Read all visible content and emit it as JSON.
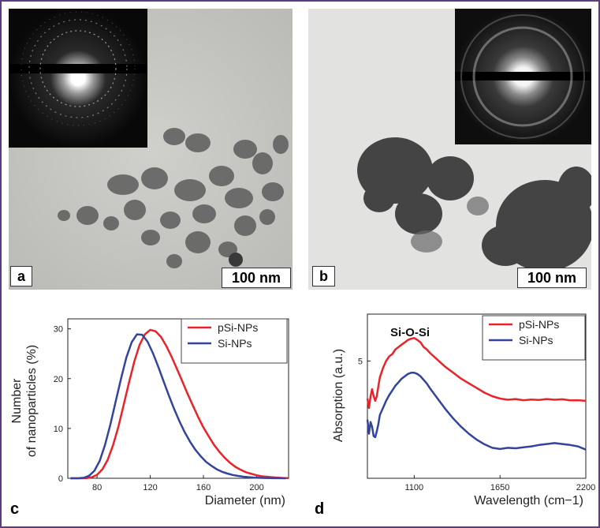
{
  "panels": {
    "a": {
      "label": "a",
      "scale_bar": "100 nm"
    },
    "b": {
      "label": "b",
      "scale_bar": "100 nm"
    },
    "c": {
      "label": "c"
    },
    "d": {
      "label": "d"
    }
  },
  "colors": {
    "frame": "#5b3a86",
    "pSi": "#e8232a",
    "Si": "#33449b"
  },
  "chart_data": [
    {
      "type": "line",
      "panel": "c",
      "xlabel": "Diameter (nm)",
      "ylabel": "Number\nof nanoparticles (%)",
      "xlim": [
        58,
        224
      ],
      "ylim": [
        0,
        32
      ],
      "xticks": [
        80,
        120,
        160,
        200
      ],
      "yticks": [
        0,
        10,
        20,
        30
      ],
      "legend_position": "top-right",
      "series": [
        {
          "name": "pSi-NPs",
          "color": "#e8232a",
          "x": [
            60,
            68,
            72,
            76,
            80,
            84,
            88,
            92,
            96,
            100,
            104,
            108,
            112,
            116,
            120,
            124,
            128,
            132,
            136,
            140,
            144,
            148,
            152,
            156,
            160,
            164,
            168,
            172,
            176,
            180,
            184,
            188,
            192,
            196,
            200,
            204,
            208,
            212,
            216,
            220,
            224
          ],
          "y": [
            0,
            0,
            0.02,
            0.2,
            0.7,
            1.8,
            3.7,
            6.6,
            10.3,
            14.7,
            19.2,
            23.4,
            26.8,
            28.9,
            29.8,
            29.5,
            28.4,
            26.6,
            24.4,
            22.0,
            19.5,
            17.0,
            14.6,
            12.3,
            10.2,
            8.4,
            6.7,
            5.3,
            4.1,
            3.1,
            2.3,
            1.7,
            1.2,
            0.9,
            0.6,
            0.4,
            0.3,
            0.2,
            0.12,
            0.06,
            0.03
          ]
        },
        {
          "name": "Si-NPs",
          "color": "#33449b",
          "x": [
            60,
            66,
            70,
            74,
            78,
            82,
            86,
            90,
            94,
            98,
            102,
            106,
            110,
            114,
            118,
            122,
            126,
            130,
            134,
            138,
            142,
            146,
            150,
            154,
            158,
            162,
            166,
            170,
            174,
            178,
            182,
            186,
            190,
            194,
            198,
            202,
            206,
            210,
            214,
            218,
            222
          ],
          "y": [
            0,
            0.02,
            0.1,
            0.5,
            1.5,
            3.5,
            6.7,
            10.8,
            15.4,
            20.0,
            24.2,
            27.3,
            28.9,
            28.8,
            27.4,
            25.1,
            22.4,
            19.5,
            16.6,
            13.9,
            11.4,
            9.2,
            7.3,
            5.7,
            4.4,
            3.3,
            2.5,
            1.8,
            1.3,
            0.95,
            0.67,
            0.47,
            0.32,
            0.22,
            0.15,
            0.1,
            0.06,
            0.04,
            0.02,
            0.01,
            0.0
          ]
        }
      ]
    },
    {
      "type": "line",
      "panel": "d",
      "title": "Si-O-Si",
      "xlabel": "Wavelength (cm−1)",
      "ylabel": "Absorption (a.u.)",
      "xlim": [
        800,
        2200
      ],
      "ylim": [
        0,
        7
      ],
      "xticks": [
        1100,
        1650,
        2200
      ],
      "yticks": [
        5
      ],
      "legend_position": "top-right",
      "series": [
        {
          "name": "pSi-NPs",
          "color": "#e8232a",
          "x": [
            800,
            810,
            820,
            830,
            840,
            850,
            860,
            870,
            880,
            900,
            920,
            940,
            960,
            980,
            1000,
            1020,
            1040,
            1060,
            1080,
            1100,
            1120,
            1140,
            1160,
            1180,
            1200,
            1250,
            1300,
            1350,
            1400,
            1450,
            1500,
            1550,
            1600,
            1650,
            1700,
            1750,
            1800,
            1850,
            1900,
            1950,
            2000,
            2050,
            2100,
            2150,
            2200
          ],
          "y": [
            3.4,
            3.0,
            3.5,
            3.8,
            3.5,
            3.3,
            3.5,
            3.9,
            4.3,
            4.7,
            5.0,
            5.2,
            5.3,
            5.5,
            5.6,
            5.7,
            5.8,
            5.9,
            5.95,
            5.98,
            5.9,
            5.8,
            5.6,
            5.5,
            5.35,
            5.05,
            4.75,
            4.5,
            4.25,
            4.05,
            3.85,
            3.65,
            3.5,
            3.4,
            3.35,
            3.38,
            3.33,
            3.36,
            3.34,
            3.38,
            3.35,
            3.37,
            3.32,
            3.33,
            3.3
          ]
        },
        {
          "name": "Si-NPs",
          "color": "#33449b",
          "x": [
            800,
            810,
            820,
            830,
            840,
            850,
            860,
            870,
            880,
            900,
            920,
            940,
            960,
            980,
            1000,
            1020,
            1040,
            1060,
            1080,
            1100,
            1120,
            1140,
            1160,
            1180,
            1200,
            1250,
            1300,
            1350,
            1400,
            1450,
            1500,
            1550,
            1600,
            1650,
            1700,
            1750,
            1800,
            1850,
            1900,
            1950,
            2000,
            2050,
            2100,
            2150,
            2200
          ],
          "y": [
            2.5,
            1.9,
            2.4,
            2.2,
            1.8,
            1.75,
            2.0,
            2.3,
            2.7,
            3.0,
            3.3,
            3.55,
            3.75,
            3.95,
            4.1,
            4.25,
            4.35,
            4.45,
            4.5,
            4.5,
            4.45,
            4.35,
            4.2,
            4.05,
            3.85,
            3.4,
            2.95,
            2.55,
            2.2,
            1.9,
            1.65,
            1.45,
            1.3,
            1.25,
            1.3,
            1.28,
            1.32,
            1.36,
            1.42,
            1.46,
            1.5,
            1.46,
            1.42,
            1.36,
            1.22
          ]
        }
      ]
    }
  ]
}
